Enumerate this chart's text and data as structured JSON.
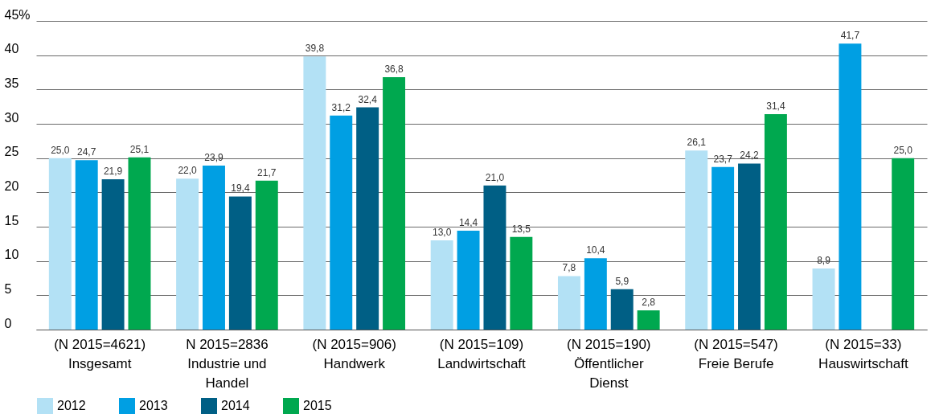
{
  "chart_data": {
    "type": "bar",
    "categories": [
      "(N 2015=4621)\nInsgesamt",
      "N 2015=2836\nIndustrie und\nHandel",
      "(N 2015=906)\nHandwerk",
      "(N 2015=109)\nLandwirtschaft",
      "(N 2015=190)\nÖffentlicher\nDienst",
      "(N 2015=547)\nFreie Berufe",
      "(N 2015=33)\nHauswirtschaft"
    ],
    "series": [
      {
        "name": "2012",
        "color": "#b3e1f5",
        "values": [
          25.0,
          22.0,
          39.8,
          13.0,
          7.8,
          26.1,
          8.9
        ],
        "value_labels": [
          "25,0",
          "22,0",
          "39,8",
          "13,0",
          "7,8",
          "26,1",
          "8,9"
        ]
      },
      {
        "name": "2013",
        "color": "#009fe3",
        "values": [
          24.7,
          23.9,
          31.2,
          14.4,
          10.4,
          23.7,
          41.7
        ],
        "value_labels": [
          "24,7",
          "23,9",
          "31,2",
          "14,4",
          "10,4",
          "23,7",
          "41,7"
        ]
      },
      {
        "name": "2014",
        "color": "#005f85",
        "values": [
          21.9,
          19.4,
          32.4,
          21.0,
          5.9,
          24.2,
          null
        ],
        "value_labels": [
          "21,9",
          "19,4",
          "32,4",
          "21,0",
          "5,9",
          "24,2",
          null
        ]
      },
      {
        "name": "2015",
        "color": "#00a84f",
        "values": [
          25.1,
          21.7,
          36.8,
          13.5,
          2.8,
          31.4,
          25.0
        ],
        "value_labels": [
          "25,1",
          "21,7",
          "36,8",
          "13,5",
          "2,8",
          "31,4",
          "25,0"
        ]
      }
    ],
    "ylim": [
      0,
      45
    ],
    "yticks": [
      0,
      5,
      10,
      15,
      20,
      25,
      30,
      35,
      40,
      {
        "value": 45,
        "label": "45%"
      }
    ],
    "grid": "y",
    "legend": "bottom left"
  }
}
